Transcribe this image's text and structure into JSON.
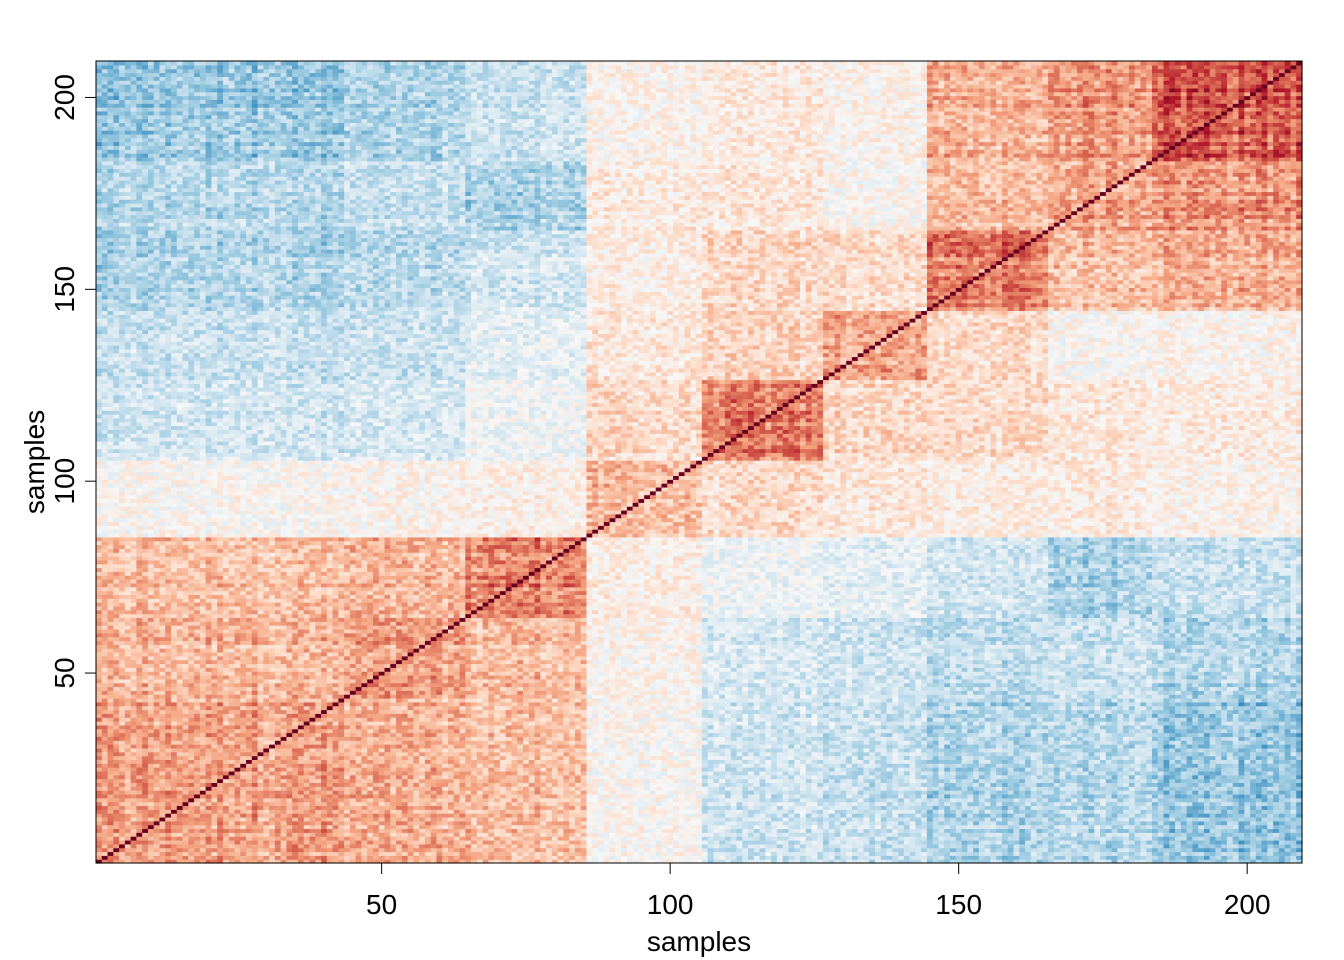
{
  "chart_data": {
    "type": "heatmap",
    "title": "",
    "xlabel": "samples",
    "ylabel": "samples",
    "n": 209,
    "xlim": [
      0.5,
      209.5
    ],
    "ylim": [
      0.5,
      209.5
    ],
    "x_ticks": [
      50,
      100,
      150,
      200
    ],
    "y_ticks": [
      50,
      100,
      150,
      200
    ],
    "x_tick_labels": [
      "50",
      "100",
      "150",
      "200"
    ],
    "y_tick_labels": [
      "50",
      "100",
      "150",
      "200"
    ],
    "value_range": [
      -1,
      1
    ],
    "colormap": [
      "#053061",
      "#2166ac",
      "#4393c3",
      "#92c5de",
      "#d1e5f0",
      "#f7f7f7",
      "#fddbc7",
      "#f4a582",
      "#d6604d",
      "#b2182b",
      "#67001f"
    ],
    "diagonal_value": 1,
    "cluster_boundaries": [
      1,
      44,
      65,
      86,
      106,
      127,
      145,
      166,
      184,
      209
    ],
    "cluster_similarity": [
      [
        0.4,
        0.34,
        0.3,
        0.02,
        -0.18,
        -0.22,
        -0.3,
        -0.28,
        -0.38
      ],
      [
        0.34,
        0.4,
        0.32,
        0.04,
        -0.15,
        -0.2,
        -0.25,
        -0.22,
        -0.3
      ],
      [
        0.3,
        0.32,
        0.5,
        0.08,
        -0.05,
        -0.1,
        -0.18,
        -0.32,
        -0.22
      ],
      [
        0.02,
        0.04,
        0.08,
        0.3,
        0.18,
        0.12,
        0.08,
        0.1,
        0.05
      ],
      [
        -0.18,
        -0.15,
        -0.05,
        0.18,
        0.5,
        0.2,
        0.18,
        0.12,
        0.1
      ],
      [
        -0.22,
        -0.2,
        -0.1,
        0.12,
        0.2,
        0.4,
        0.18,
        0.02,
        0.05
      ],
      [
        -0.3,
        -0.25,
        -0.18,
        0.08,
        0.18,
        0.18,
        0.5,
        0.3,
        0.35
      ],
      [
        -0.28,
        -0.22,
        -0.32,
        0.1,
        0.12,
        0.02,
        0.3,
        0.4,
        0.45
      ],
      [
        -0.38,
        -0.3,
        -0.22,
        0.05,
        0.1,
        0.05,
        0.35,
        0.45,
        0.65
      ]
    ]
  }
}
